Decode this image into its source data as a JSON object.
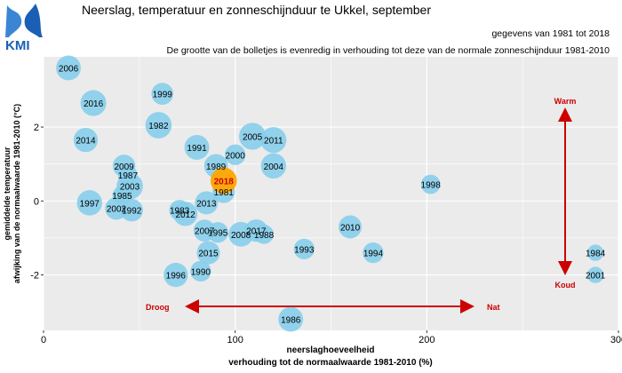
{
  "title": "Neerslag, temperatuur en zonneschijnduur te Ukkel, september",
  "logo_text": "KMI",
  "notes": {
    "period": "gegevens van 1981 tot 2018",
    "bubble_size": "De grootte van de bolletjes is evenredig in verhouding tot deze van de normale zonneschijnduur 1981-2010"
  },
  "annotations": {
    "dry": "Droog",
    "wet": "Nat",
    "warm": "Warm",
    "cold": "Koud"
  },
  "colors": {
    "panel": "#ebebeb",
    "grid": "#ffffff",
    "bubble": "#87ceeb",
    "highlight": "#ffa500",
    "annotation": "#cc0000"
  },
  "chart_data": {
    "type": "scatter",
    "xlabel": [
      "neerslaghoeveelheid",
      "verhouding tot de normaalwaarde 1981-2010 (%)"
    ],
    "ylabel": [
      "gemiddelde temperatuur",
      "afwijking van de normaalwaarde 1981-2010 (°C)"
    ],
    "xlim": [
      0,
      300
    ],
    "ylim": [
      -3.5,
      3.9
    ],
    "xticks": [
      0,
      100,
      200,
      300
    ],
    "yticks": [
      -2,
      0,
      2
    ],
    "grid": true,
    "highlight_year": "2018",
    "points": [
      {
        "year": "2006",
        "x": 13,
        "y": 3.6,
        "sun": 115
      },
      {
        "year": "1999",
        "x": 62,
        "y": 2.9,
        "sun": 90
      },
      {
        "year": "2016",
        "x": 26,
        "y": 2.65,
        "sun": 125
      },
      {
        "year": "1982",
        "x": 60,
        "y": 2.05,
        "sun": 130
      },
      {
        "year": "2014",
        "x": 22,
        "y": 1.65,
        "sun": 110
      },
      {
        "year": "2005",
        "x": 109,
        "y": 1.75,
        "sun": 135
      },
      {
        "year": "2011",
        "x": 120,
        "y": 1.65,
        "sun": 125
      },
      {
        "year": "1991",
        "x": 80,
        "y": 1.45,
        "sun": 115
      },
      {
        "year": "2000",
        "x": 100,
        "y": 1.25,
        "sun": 80
      },
      {
        "year": "2009",
        "x": 42,
        "y": 0.95,
        "sun": 95
      },
      {
        "year": "1989",
        "x": 90,
        "y": 0.95,
        "sun": 105
      },
      {
        "year": "2004",
        "x": 120,
        "y": 0.95,
        "sun": 120
      },
      {
        "year": "1987",
        "x": 44,
        "y": 0.7,
        "sun": 70
      },
      {
        "year": "2018",
        "x": 94,
        "y": 0.55,
        "sun": 130
      },
      {
        "year": "2003",
        "x": 45,
        "y": 0.4,
        "sun": 130
      },
      {
        "year": "1998",
        "x": 202,
        "y": 0.45,
        "sun": 70
      },
      {
        "year": "1981",
        "x": 94,
        "y": 0.25,
        "sun": 95
      },
      {
        "year": "1985",
        "x": 41,
        "y": 0.15,
        "sun": 70
      },
      {
        "year": "1997",
        "x": 24,
        "y": -0.05,
        "sun": 120
      },
      {
        "year": "2013",
        "x": 85,
        "y": -0.05,
        "sun": 100
      },
      {
        "year": "2002",
        "x": 38,
        "y": -0.2,
        "sun": 95
      },
      {
        "year": "1992",
        "x": 46,
        "y": -0.25,
        "sun": 95
      },
      {
        "year": "1983",
        "x": 71,
        "y": -0.25,
        "sun": 80
      },
      {
        "year": "2012",
        "x": 74,
        "y": -0.35,
        "sun": 110
      },
      {
        "year": "2010",
        "x": 160,
        "y": -0.7,
        "sun": 100
      },
      {
        "year": "2007",
        "x": 84,
        "y": -0.8,
        "sun": 90
      },
      {
        "year": "1995",
        "x": 91,
        "y": -0.85,
        "sun": 80
      },
      {
        "year": "2017",
        "x": 111,
        "y": -0.8,
        "sun": 95
      },
      {
        "year": "2008",
        "x": 103,
        "y": -0.9,
        "sun": 115
      },
      {
        "year": "1988",
        "x": 115,
        "y": -0.9,
        "sun": 70
      },
      {
        "year": "1993",
        "x": 136,
        "y": -1.3,
        "sun": 80
      },
      {
        "year": "1994",
        "x": 172,
        "y": -1.4,
        "sun": 80
      },
      {
        "year": "2015",
        "x": 86,
        "y": -1.4,
        "sun": 100
      },
      {
        "year": "1984",
        "x": 288,
        "y": -1.4,
        "sun": 50
      },
      {
        "year": "1990",
        "x": 82,
        "y": -1.9,
        "sun": 80
      },
      {
        "year": "1996",
        "x": 69,
        "y": -2.0,
        "sun": 110
      },
      {
        "year": "2001",
        "x": 288,
        "y": -2.0,
        "sun": 50
      },
      {
        "year": "1986",
        "x": 129,
        "y": -3.2,
        "sun": 115
      }
    ]
  }
}
